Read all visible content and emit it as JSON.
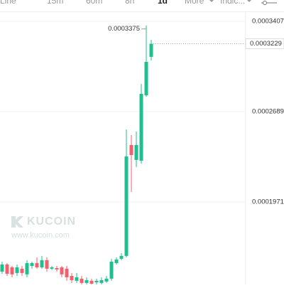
{
  "toolbar": {
    "tabs": [
      "Line",
      "15m",
      "60m",
      "8h",
      "1d",
      "More",
      "Indic..."
    ],
    "active": 4
  },
  "watermark": {
    "brand": "KUCOIN",
    "url": "www.kucoin.com"
  },
  "chart_data": {
    "type": "candlestick",
    "up_color": "#1fbf8f",
    "down_color": "#f0616d",
    "ylim": [
      0.0001315,
      0.0003577
    ],
    "yticks": [
      0.0001971,
      0.0002689,
      0.0003407
    ],
    "grid": true,
    "high_marker": 0.0003375,
    "last_price": 0.0003229,
    "open": [
      0.0001417,
      0.0001474,
      0.0001451,
      0.0001406,
      0.000144,
      0.0001395,
      0.0001462,
      0.0001485,
      0.0001451,
      0.0001508,
      0.000144,
      0.0001445,
      0.0001451,
      0.000144,
      0.0001383,
      0.0001344,
      0.0001361,
      0.0001327,
      0.0001344,
      0.0001332,
      0.0001327,
      0.0001338,
      0.0001361,
      0.0001485,
      0.0001519,
      0.0001542,
      0.0002424,
      0.0002305,
      0.0002299,
      0.0002819,
      0.0003125
    ],
    "high": [
      0.0001496,
      0.0001485,
      0.0001462,
      0.0001474,
      0.0001462,
      0.0001508,
      0.0001496,
      0.000153,
      0.0001542,
      0.000153,
      0.0001462,
      0.0001462,
      0.0001462,
      0.0001462,
      0.0001406,
      0.0001406,
      0.0001383,
      0.0001372,
      0.0001361,
      0.0001361,
      0.0001372,
      0.0001383,
      0.0001519,
      0.000153,
      0.0001564,
      0.0002548,
      0.0002503,
      0.0002531,
      0.000291,
      0.0003375,
      0.000326
    ],
    "low": [
      0.00014,
      0.0001383,
      0.0001372,
      0.0001383,
      0.0001383,
      0.0001372,
      0.000144,
      0.000144,
      0.000144,
      0.0001417,
      0.0001429,
      0.0001417,
      0.0001372,
      0.0001344,
      0.0001327,
      0.0001327,
      0.0001315,
      0.0001315,
      0.0001315,
      0.0001315,
      0.0001315,
      0.0001327,
      0.0001344,
      0.0001474,
      0.0001508,
      0.000153,
      0.000205,
      0.0002248,
      0.0002277,
      0.0002808,
      0.0003096
    ],
    "close": [
      0.0001474,
      0.00014,
      0.0001395,
      0.0001451,
      0.0001406,
      0.0001485,
      0.0001485,
      0.0001451,
      0.0001508,
      0.000144,
      0.0001451,
      0.0001434,
      0.0001395,
      0.0001372,
      0.0001349,
      0.0001372,
      0.0001327,
      0.0001349,
      0.0001321,
      0.0001344,
      0.0001349,
      0.0001361,
      0.0001496,
      0.0001513,
      0.0001542,
      0.0002333,
      0.0002344,
      0.0002424,
      0.0002831,
      0.0003085,
      0.0003229
    ]
  }
}
